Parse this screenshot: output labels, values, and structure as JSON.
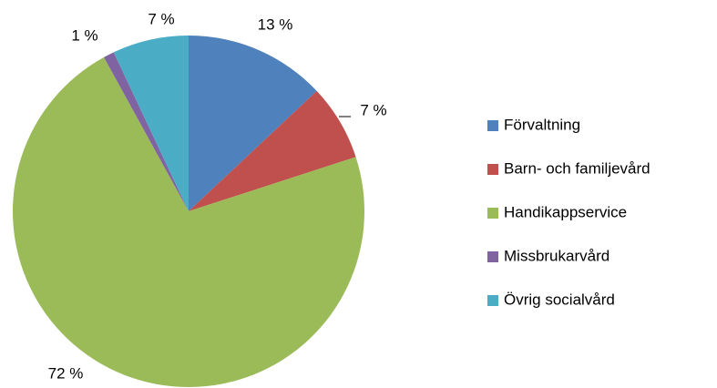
{
  "chart_data": {
    "type": "pie",
    "categories": [
      "Förvaltning",
      "Barn- och familjevård",
      "Handikappservice",
      "Missbrukarvård",
      "Övrig socialvård"
    ],
    "values": [
      13,
      7,
      72,
      1,
      7
    ],
    "value_labels": [
      "13 %",
      "7 %",
      "72 %",
      "1 %",
      "7 %"
    ],
    "colors": [
      "#4f81bd",
      "#c0504d",
      "#9bbb59",
      "#8064a2",
      "#4bacc6"
    ],
    "legend": "right"
  }
}
